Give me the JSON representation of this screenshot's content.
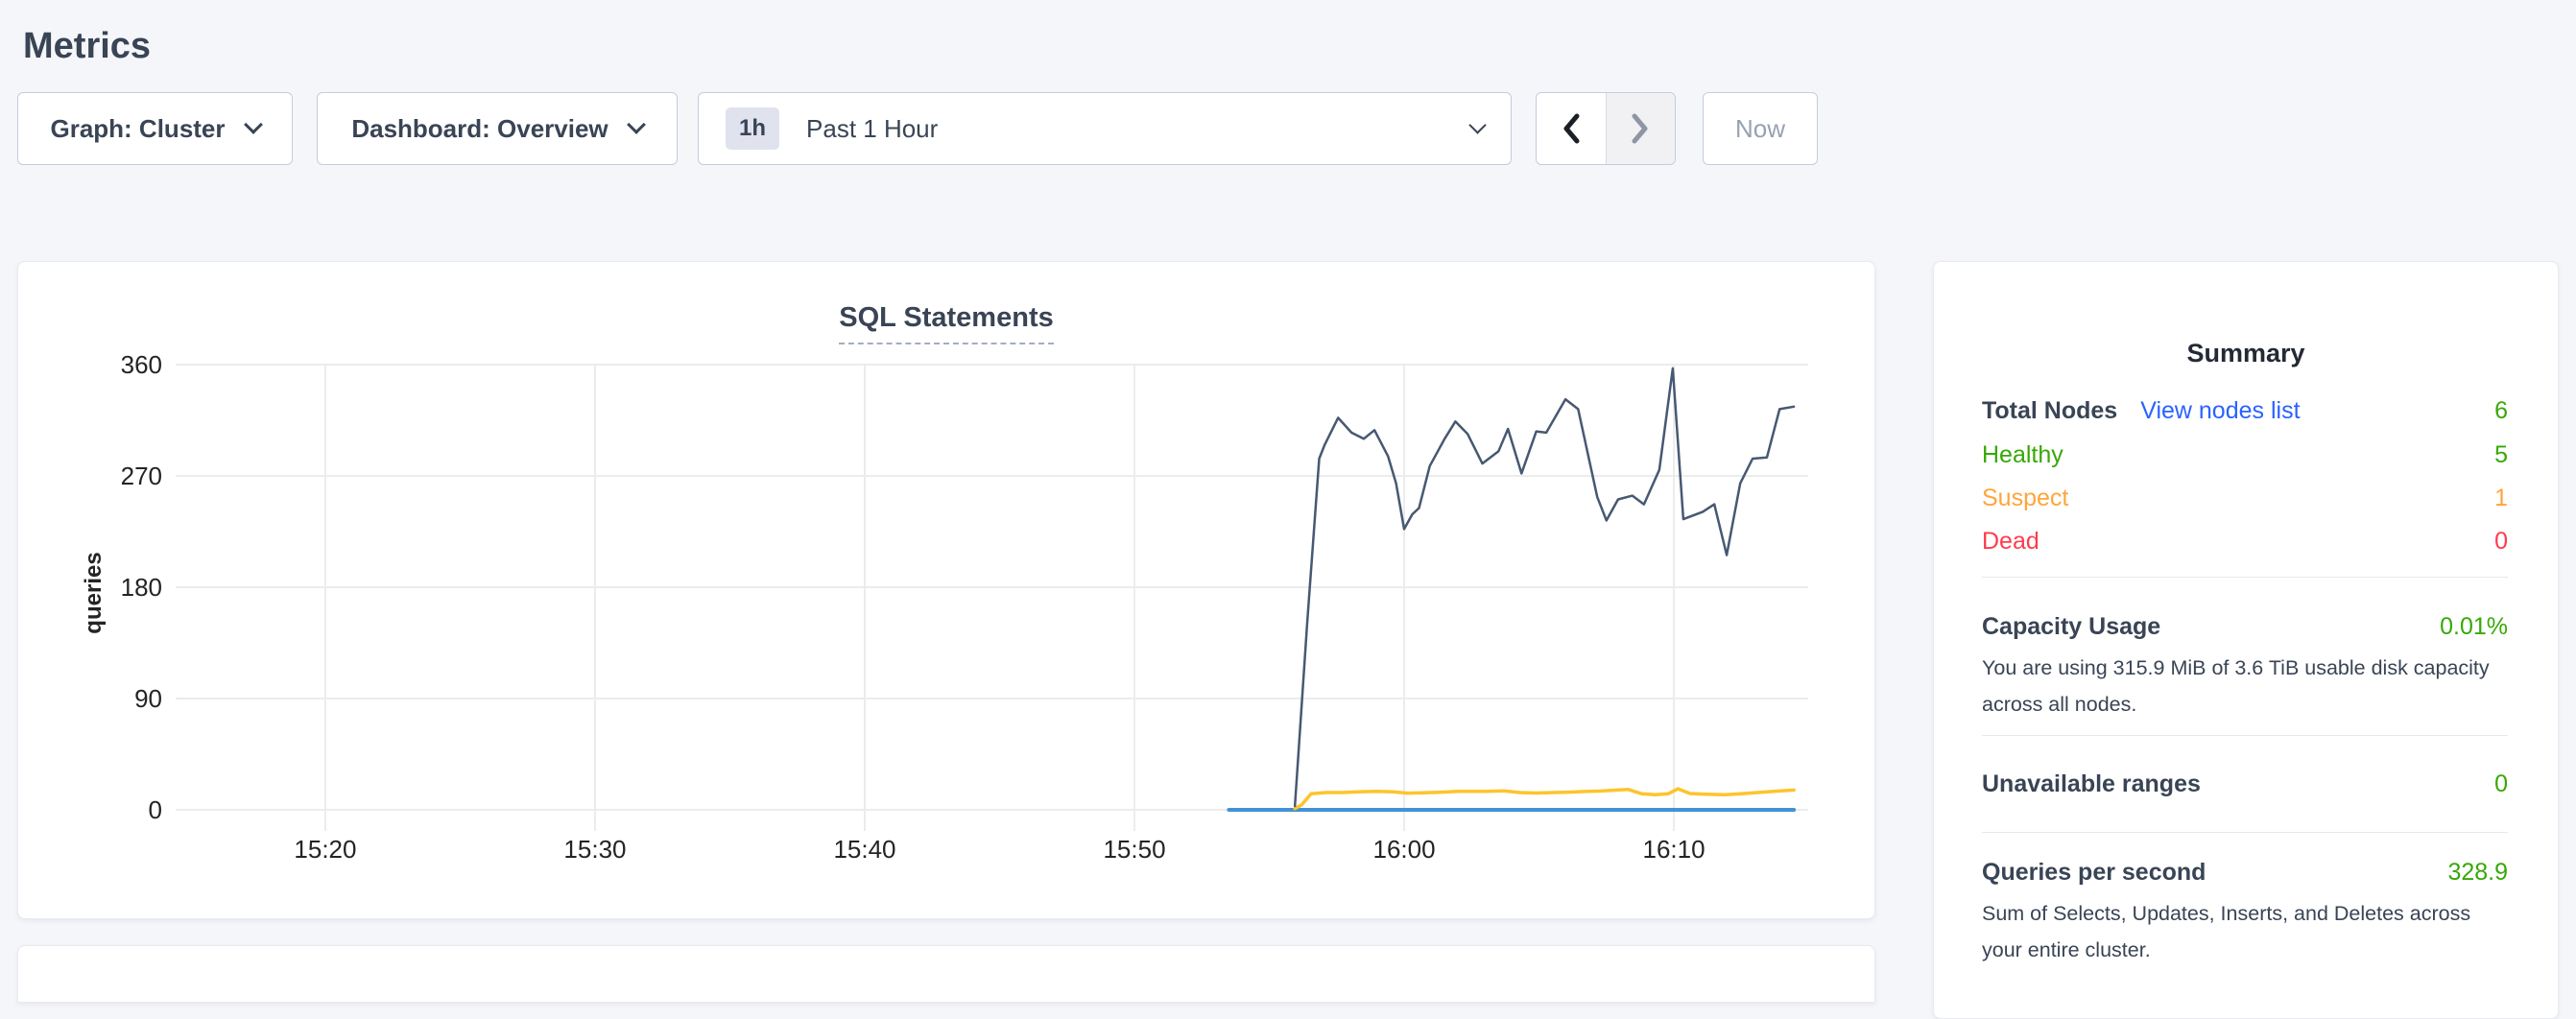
{
  "page": {
    "title": "Metrics"
  },
  "toolbar": {
    "graph_dropdown": {
      "label": "Graph: Cluster"
    },
    "dashboard_dropdown": {
      "label": "Dashboard: Overview"
    },
    "time_range": {
      "badge": "1h",
      "label": "Past 1 Hour"
    },
    "now_button": "Now"
  },
  "icons": {
    "dropdown_caret": "chevron-down",
    "prev_range": "chevron-left",
    "next_range": "chevron-right"
  },
  "chart_data": {
    "type": "line",
    "title": "SQL Statements",
    "ylabel": "queries",
    "ylim": [
      0,
      360
    ],
    "xlim_minutes": [
      14.45,
      74.98
    ],
    "y_ticks": [
      0,
      90,
      180,
      270,
      360
    ],
    "x_ticks": [
      {
        "t": 20,
        "label": "15:20"
      },
      {
        "t": 30,
        "label": "15:30"
      },
      {
        "t": 40,
        "label": "15:40"
      },
      {
        "t": 50,
        "label": "15:50"
      },
      {
        "t": 60,
        "label": "16:00"
      },
      {
        "t": 70,
        "label": "16:10"
      }
    ],
    "grid": true,
    "legend": "none",
    "series": [
      {
        "name": "flat-blue-series",
        "color": "#4292d3",
        "width": 4,
        "points": [
          [
            53.5,
            0
          ],
          [
            74.45,
            0
          ]
        ]
      },
      {
        "name": "yellow-series",
        "color": "#fdc42c",
        "width": 3.5,
        "points": [
          [
            55.95,
            1
          ],
          [
            56.2,
            4
          ],
          [
            56.55,
            13
          ],
          [
            57.1,
            14
          ],
          [
            57.7,
            14
          ],
          [
            58.3,
            14.5
          ],
          [
            59.0,
            15
          ],
          [
            59.6,
            14.5
          ],
          [
            60.1,
            13.5
          ],
          [
            60.7,
            13.8
          ],
          [
            61.3,
            14.2
          ],
          [
            61.9,
            14.8
          ],
          [
            62.5,
            15
          ],
          [
            63.1,
            15
          ],
          [
            63.7,
            15.3
          ],
          [
            64.3,
            14
          ],
          [
            64.9,
            13.6
          ],
          [
            65.5,
            14
          ],
          [
            66.1,
            14.3
          ],
          [
            66.7,
            14.8
          ],
          [
            67.3,
            15.2
          ],
          [
            67.9,
            16
          ],
          [
            68.3,
            16.5
          ],
          [
            68.8,
            13
          ],
          [
            69.3,
            12.2
          ],
          [
            69.8,
            13
          ],
          [
            70.15,
            17
          ],
          [
            70.6,
            13.2
          ],
          [
            71.2,
            12.6
          ],
          [
            71.9,
            12.2
          ],
          [
            72.5,
            13
          ],
          [
            73.1,
            14
          ],
          [
            73.7,
            15
          ],
          [
            74.45,
            16
          ]
        ]
      },
      {
        "name": "navy-series",
        "color": "#475872",
        "width": 2.5,
        "points": [
          [
            55.95,
            3
          ],
          [
            56.4,
            150
          ],
          [
            56.85,
            284
          ],
          [
            57.05,
            295
          ],
          [
            57.55,
            317
          ],
          [
            58.05,
            305
          ],
          [
            58.5,
            300
          ],
          [
            58.9,
            307
          ],
          [
            59.4,
            286
          ],
          [
            59.7,
            264
          ],
          [
            60.0,
            227
          ],
          [
            60.3,
            239
          ],
          [
            60.55,
            244
          ],
          [
            60.95,
            278
          ],
          [
            61.5,
            300
          ],
          [
            61.9,
            314
          ],
          [
            62.35,
            304
          ],
          [
            62.9,
            280
          ],
          [
            63.5,
            290
          ],
          [
            63.85,
            308
          ],
          [
            64.35,
            272
          ],
          [
            64.9,
            306
          ],
          [
            65.27,
            305
          ],
          [
            65.98,
            332
          ],
          [
            66.45,
            324
          ],
          [
            67.16,
            253
          ],
          [
            67.5,
            234
          ],
          [
            67.93,
            251
          ],
          [
            68.46,
            254
          ],
          [
            68.89,
            247
          ],
          [
            69.46,
            275
          ],
          [
            69.96,
            357
          ],
          [
            70.35,
            235
          ],
          [
            71.07,
            241
          ],
          [
            71.5,
            247
          ],
          [
            71.96,
            206
          ],
          [
            72.46,
            264
          ],
          [
            72.92,
            284
          ],
          [
            73.45,
            285
          ],
          [
            73.92,
            324
          ],
          [
            74.45,
            326
          ]
        ]
      }
    ]
  },
  "summary": {
    "title": "Summary",
    "total_nodes_label": "Total Nodes",
    "view_nodes_link": "View nodes list",
    "total_nodes_value": "6",
    "healthy_label": "Healthy",
    "healthy_value": "5",
    "suspect_label": "Suspect",
    "suspect_value": "1",
    "dead_label": "Dead",
    "dead_value": "0",
    "capacity_label": "Capacity Usage",
    "capacity_value": "0.01%",
    "capacity_desc": "You are using 315.9 MiB of 3.6 TiB usable disk capacity\nacross all nodes.",
    "unavailable_label": "Unavailable ranges",
    "unavailable_value": "0",
    "qps_label": "Queries per second",
    "qps_value": "328.9",
    "qps_desc": "Sum of Selects, Updates, Inserts, and Deletes across\nyour entire cluster.",
    "status_colors": {
      "green": "#37a806",
      "orange": "#ffa53b",
      "red": "#ff3b4e",
      "link": "#2962ff"
    }
  }
}
